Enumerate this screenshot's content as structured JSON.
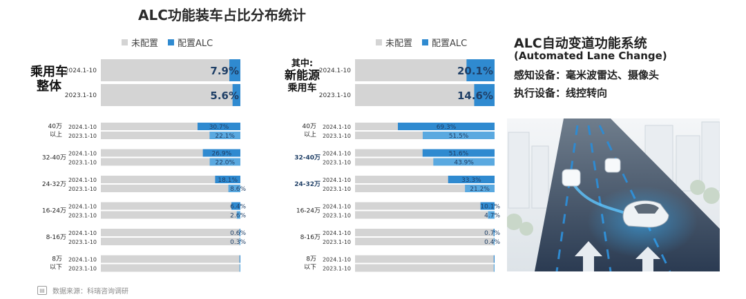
{
  "title": "ALC功能装车占比分布统计",
  "legend": {
    "unconfigured": "未配置",
    "configured": "配置ALC"
  },
  "colors": {
    "unconfigured": "#d4d4d4",
    "configured": "#2f8ad0",
    "configured_light": "#5aa9e0"
  },
  "left_panel": {
    "group_label_line1": "乘用车",
    "group_label_line2": "整体"
  },
  "right_panel": {
    "group_label_line1": "其中:",
    "group_label_line2": "新能源",
    "group_label_line3": "乘用车"
  },
  "side": {
    "heading": "ALC自动变道功能系统",
    "subheading": "(Automated Lane Change)",
    "sensing": "感知设备：毫米波雷达、摄像头",
    "execution": "执行设备：线控转向"
  },
  "source": "数据来源：科瑞咨询调研",
  "chart_data": [
    {
      "type": "bar",
      "title": "乘用车整体",
      "orientation": "horizontal",
      "stacked": true,
      "xlim": [
        0,
        100
      ],
      "unit": "%",
      "overall": [
        {
          "period": "2024.1-10",
          "value": 7.9,
          "label": "7.9%"
        },
        {
          "period": "2023.1-10",
          "value": 5.6,
          "label": "5.6%"
        }
      ],
      "price_segments": [
        {
          "segment": "40万以上",
          "line1": "40万",
          "line2": "以上",
          "rows": [
            {
              "period": "2024.1-10",
              "value": 30.7,
              "label": "30.7%"
            },
            {
              "period": "2023.1-10",
              "value": 22.1,
              "label": "22.1%"
            }
          ]
        },
        {
          "segment": "32-40万",
          "line1": "32-40万",
          "line2": "",
          "rows": [
            {
              "period": "2024.1-10",
              "value": 26.9,
              "label": "26.9%"
            },
            {
              "period": "2023.1-10",
              "value": 22.0,
              "label": "22.0%"
            }
          ]
        },
        {
          "segment": "24-32万",
          "line1": "24-32万",
          "line2": "",
          "rows": [
            {
              "period": "2024.1-10",
              "value": 18.1,
              "label": "18.1%"
            },
            {
              "period": "2023.1-10",
              "value": 8.6,
              "label": "8.6%"
            }
          ]
        },
        {
          "segment": "16-24万",
          "line1": "16-24万",
          "line2": "",
          "rows": [
            {
              "period": "2024.1-10",
              "value": 6.4,
              "label": "6.4%"
            },
            {
              "period": "2023.1-10",
              "value": 2.6,
              "label": "2.6%"
            }
          ]
        },
        {
          "segment": "8-16万",
          "line1": "8-16万",
          "line2": "",
          "rows": [
            {
              "period": "2024.1-10",
              "value": 0.6,
              "label": "0.6%"
            },
            {
              "period": "2023.1-10",
              "value": 0.3,
              "label": "0.3%"
            }
          ]
        },
        {
          "segment": "8万以下",
          "line1": "8万",
          "line2": "以下",
          "rows": [
            {
              "period": "2024.1-10",
              "value": 0.3,
              "label": ""
            },
            {
              "period": "2023.1-10",
              "value": 0.2,
              "label": ""
            }
          ]
        }
      ]
    },
    {
      "type": "bar",
      "title": "其中:新能源乘用车",
      "orientation": "horizontal",
      "stacked": true,
      "xlim": [
        0,
        100
      ],
      "unit": "%",
      "overall": [
        {
          "period": "2024.1-10",
          "value": 20.1,
          "label": "20.1%"
        },
        {
          "period": "2023.1-10",
          "value": 14.6,
          "label": "14.6%"
        }
      ],
      "price_segments": [
        {
          "segment": "40万以上",
          "line1": "40万",
          "line2": "以上",
          "rows": [
            {
              "period": "2024.1-10",
              "value": 69.3,
              "label": "69.3%"
            },
            {
              "period": "2023.1-10",
              "value": 51.5,
              "label": "51.5%"
            }
          ]
        },
        {
          "segment": "32-40万",
          "line1": "32-40万",
          "line2": "",
          "rows": [
            {
              "period": "2024.1-10",
              "value": 51.6,
              "label": "51.6%"
            },
            {
              "period": "2023.1-10",
              "value": 43.9,
              "label": "43.9%"
            }
          ]
        },
        {
          "segment": "24-32万",
          "line1": "24-32万",
          "line2": "",
          "rows": [
            {
              "period": "2024.1-10",
              "value": 33.3,
              "label": "33.3%"
            },
            {
              "period": "2023.1-10",
              "value": 21.2,
              "label": "21.2%"
            }
          ]
        },
        {
          "segment": "16-24万",
          "line1": "16-24万",
          "line2": "",
          "rows": [
            {
              "period": "2024.1-10",
              "value": 10.1,
              "label": "10.1%"
            },
            {
              "period": "2023.1-10",
              "value": 4.7,
              "label": "4.7%"
            }
          ]
        },
        {
          "segment": "8-16万",
          "line1": "8-16万",
          "line2": "",
          "rows": [
            {
              "period": "2024.1-10",
              "value": 0.7,
              "label": "0.7%"
            },
            {
              "period": "2023.1-10",
              "value": 0.4,
              "label": "0.4%"
            }
          ]
        },
        {
          "segment": "8万以下",
          "line1": "8万",
          "line2": "以下",
          "rows": [
            {
              "period": "2024.1-10",
              "value": 0.3,
              "label": ""
            },
            {
              "period": "2023.1-10",
              "value": 0.2,
              "label": ""
            }
          ]
        }
      ]
    }
  ]
}
